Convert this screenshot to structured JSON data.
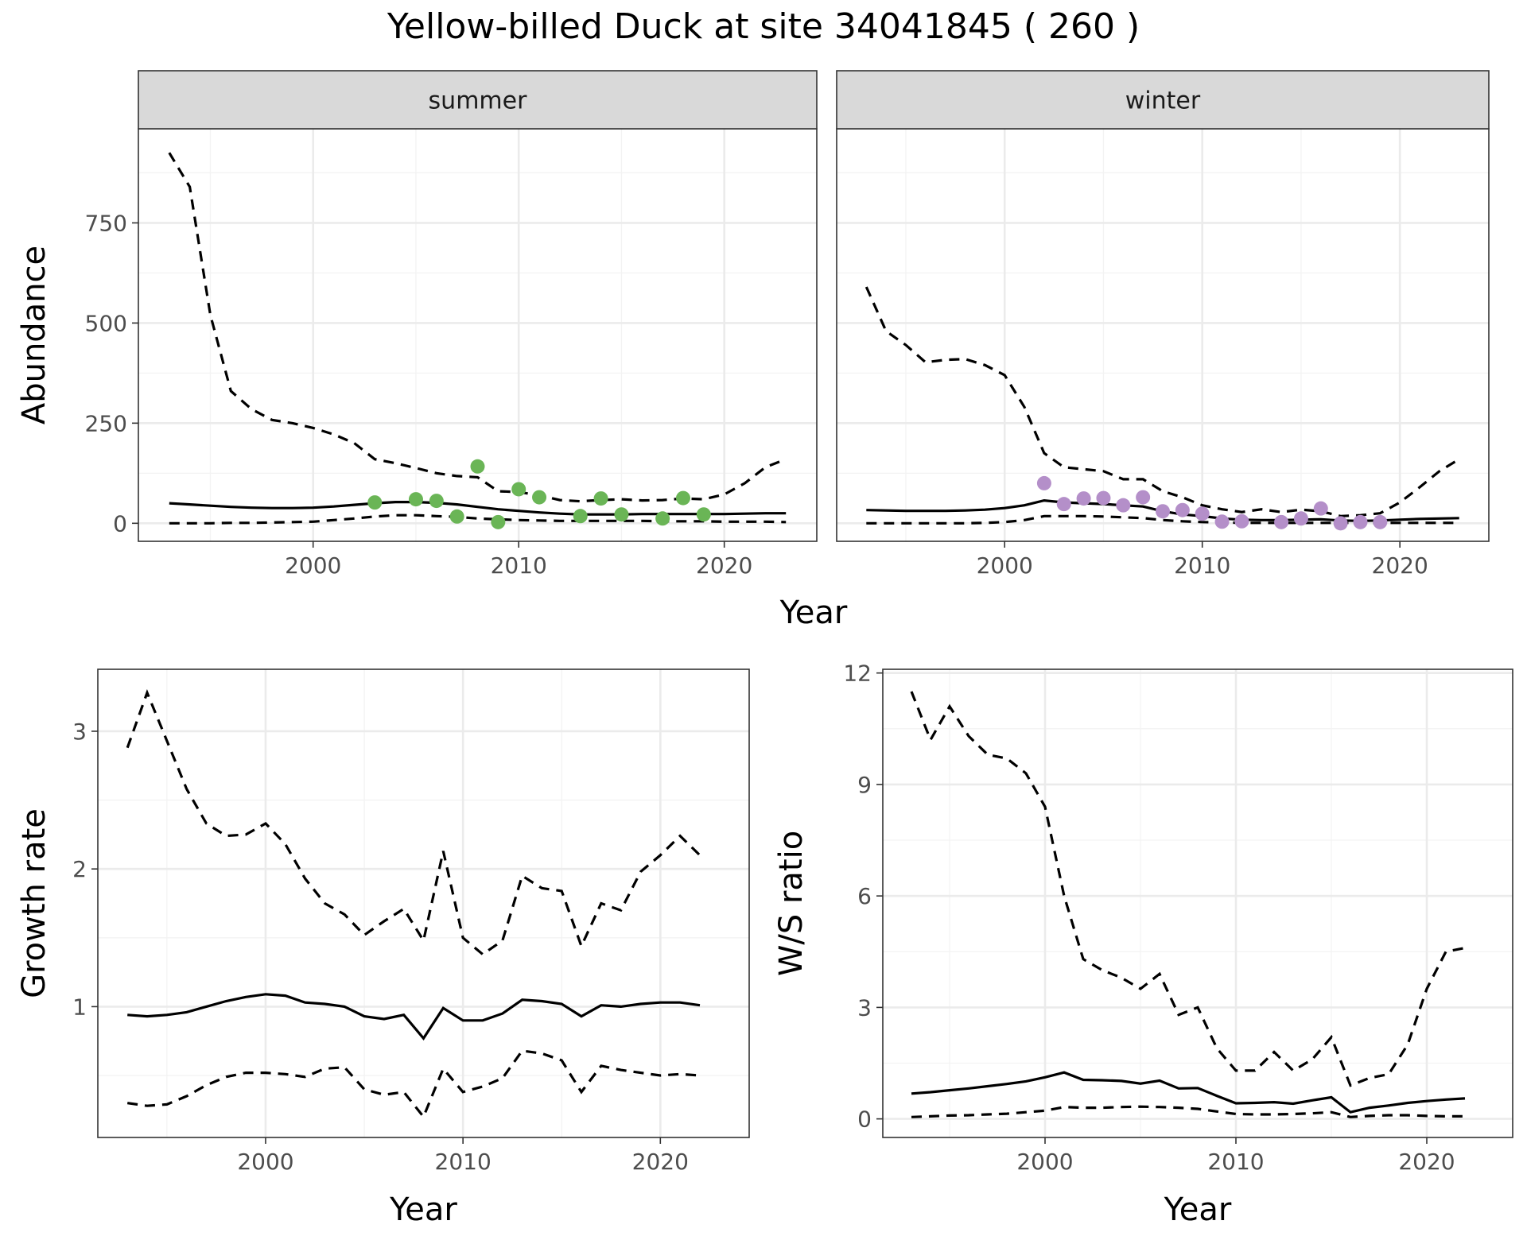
{
  "title": "Yellow-billed Duck at site 34041845 ( 260 )",
  "colors": {
    "summer_points": "#6ab556",
    "winter_points": "#b48fc9"
  },
  "chart_data": [
    {
      "id": "abundance",
      "type": "line",
      "title": "Yellow-billed Duck at site 34041845 ( 260 )",
      "xlabel": "Year",
      "ylabel": "Abundance",
      "xlim": [
        1991.5,
        2024.5
      ],
      "ylim": [
        -45,
        985
      ],
      "xticks": [
        2000,
        2010,
        2020
      ],
      "yticks": [
        0,
        250,
        500,
        750
      ],
      "facets": [
        {
          "strip": "summer",
          "years": [
            1993,
            1994,
            1995,
            1996,
            1997,
            1998,
            1999,
            2000,
            2001,
            2002,
            2003,
            2004,
            2005,
            2006,
            2007,
            2008,
            2009,
            2010,
            2011,
            2012,
            2013,
            2014,
            2015,
            2016,
            2017,
            2018,
            2019,
            2020,
            2021,
            2022,
            2023
          ],
          "mean": [
            50,
            47,
            44,
            41,
            39,
            38,
            38,
            39,
            42,
            46,
            50,
            53,
            53,
            51,
            47,
            41,
            35,
            31,
            27,
            24,
            22,
            22,
            22,
            23,
            23,
            23,
            23,
            23,
            24,
            25,
            25
          ],
          "upper": [
            925,
            840,
            520,
            330,
            285,
            258,
            250,
            238,
            222,
            200,
            160,
            150,
            138,
            125,
            118,
            115,
            80,
            78,
            70,
            58,
            55,
            58,
            60,
            57,
            58,
            62,
            60,
            72,
            100,
            140,
            160
          ],
          "lower": [
            0,
            0,
            0,
            1,
            1,
            2,
            3,
            4,
            8,
            12,
            17,
            20,
            20,
            18,
            16,
            12,
            10,
            8,
            7,
            6,
            6,
            6,
            6,
            6,
            5,
            5,
            5,
            4,
            4,
            4,
            3
          ],
          "observed": {
            "years": [
              2003,
              2005,
              2006,
              2007,
              2008,
              2009,
              2010,
              2011,
              2013,
              2014,
              2015,
              2017,
              2018,
              2019
            ],
            "values": [
              52,
              60,
              56,
              17,
              142,
              3,
              85,
              65,
              18,
              62,
              22,
              12,
              63,
              22
            ]
          }
        },
        {
          "strip": "winter",
          "years": [
            1993,
            1994,
            1995,
            1996,
            1997,
            1998,
            1999,
            2000,
            2001,
            2002,
            2003,
            2004,
            2005,
            2006,
            2007,
            2008,
            2009,
            2010,
            2011,
            2012,
            2013,
            2014,
            2015,
            2016,
            2017,
            2018,
            2019,
            2020,
            2021,
            2022,
            2023
          ],
          "mean": [
            33,
            32,
            31,
            31,
            31,
            32,
            34,
            38,
            45,
            57,
            52,
            50,
            48,
            45,
            42,
            30,
            22,
            18,
            12,
            9,
            8,
            8,
            9,
            10,
            7,
            6,
            7,
            9,
            11,
            12,
            13
          ],
          "upper": [
            590,
            480,
            445,
            402,
            408,
            410,
            395,
            370,
            290,
            175,
            140,
            135,
            130,
            110,
            110,
            80,
            65,
            45,
            35,
            28,
            35,
            28,
            34,
            30,
            18,
            20,
            25,
            52,
            90,
            130,
            160
          ],
          "lower": [
            0,
            0,
            0,
            0,
            0,
            0,
            1,
            3,
            8,
            18,
            18,
            18,
            17,
            15,
            13,
            8,
            5,
            3,
            2,
            1,
            1,
            1,
            1,
            1,
            1,
            1,
            1,
            1,
            1,
            1,
            1
          ],
          "observed": {
            "years": [
              2002,
              2003,
              2004,
              2005,
              2006,
              2007,
              2008,
              2009,
              2010,
              2011,
              2012,
              2014,
              2015,
              2016,
              2017,
              2018,
              2019
            ],
            "values": [
              100,
              48,
              62,
              63,
              45,
              65,
              30,
              33,
              24,
              4,
              5,
              3,
              12,
              37,
              0,
              3,
              3
            ]
          }
        }
      ]
    },
    {
      "id": "growth",
      "type": "line",
      "xlabel": "Year",
      "ylabel": "Growth rate",
      "xlim": [
        1991.5,
        2024.5
      ],
      "ylim": [
        0.05,
        3.45
      ],
      "xticks": [
        2000,
        2010,
        2020
      ],
      "yticks": [
        1,
        2,
        3
      ],
      "years": [
        1993,
        1994,
        1995,
        1996,
        1997,
        1998,
        1999,
        2000,
        2001,
        2002,
        2003,
        2004,
        2005,
        2006,
        2007,
        2008,
        2009,
        2010,
        2011,
        2012,
        2013,
        2014,
        2015,
        2016,
        2017,
        2018,
        2019,
        2020,
        2021,
        2022
      ],
      "mean": [
        0.94,
        0.93,
        0.94,
        0.96,
        1.0,
        1.04,
        1.07,
        1.09,
        1.08,
        1.03,
        1.02,
        1.0,
        0.93,
        0.91,
        0.94,
        0.77,
        0.99,
        0.9,
        0.9,
        0.95,
        1.05,
        1.04,
        1.02,
        0.93,
        1.01,
        1.0,
        1.02,
        1.03,
        1.03,
        1.01
      ],
      "upper": [
        2.88,
        3.28,
        2.93,
        2.58,
        2.33,
        2.24,
        2.25,
        2.33,
        2.18,
        1.93,
        1.75,
        1.67,
        1.52,
        1.62,
        1.71,
        1.48,
        2.13,
        1.5,
        1.38,
        1.48,
        1.95,
        1.86,
        1.84,
        1.44,
        1.75,
        1.7,
        1.98,
        2.1,
        2.24,
        2.1
      ],
      "lower": [
        0.3,
        0.28,
        0.29,
        0.35,
        0.43,
        0.49,
        0.52,
        0.52,
        0.51,
        0.49,
        0.55,
        0.56,
        0.4,
        0.36,
        0.38,
        0.2,
        0.55,
        0.38,
        0.42,
        0.48,
        0.68,
        0.66,
        0.61,
        0.38,
        0.57,
        0.54,
        0.52,
        0.5,
        0.51,
        0.5
      ]
    },
    {
      "id": "ratio",
      "type": "line",
      "xlabel": "Year",
      "ylabel": "W/S ratio",
      "xlim": [
        1991.5,
        2024.5
      ],
      "ylim": [
        -0.5,
        12.1
      ],
      "xticks": [
        2000,
        2010,
        2020
      ],
      "yticks": [
        0,
        3,
        6,
        9,
        12
      ],
      "years": [
        1993,
        1994,
        1995,
        1996,
        1997,
        1998,
        1999,
        2000,
        2001,
        2002,
        2003,
        2004,
        2005,
        2006,
        2007,
        2008,
        2009,
        2010,
        2011,
        2012,
        2013,
        2014,
        2015,
        2016,
        2017,
        2018,
        2019,
        2020,
        2021,
        2022
      ],
      "mean": [
        0.68,
        0.72,
        0.77,
        0.82,
        0.88,
        0.94,
        1.01,
        1.12,
        1.25,
        1.05,
        1.04,
        1.02,
        0.95,
        1.03,
        0.82,
        0.83,
        0.62,
        0.42,
        0.43,
        0.45,
        0.41,
        0.5,
        0.58,
        0.18,
        0.3,
        0.36,
        0.43,
        0.48,
        0.52,
        0.55
      ],
      "upper": [
        11.5,
        10.2,
        11.1,
        10.3,
        9.8,
        9.7,
        9.3,
        8.4,
        6.0,
        4.3,
        4.0,
        3.8,
        3.5,
        3.9,
        2.8,
        3.0,
        1.9,
        1.3,
        1.3,
        1.8,
        1.3,
        1.6,
        2.2,
        0.9,
        1.1,
        1.2,
        2.0,
        3.5,
        4.5,
        4.6
      ],
      "lower": [
        0.05,
        0.07,
        0.09,
        0.1,
        0.12,
        0.14,
        0.18,
        0.22,
        0.32,
        0.3,
        0.3,
        0.32,
        0.33,
        0.32,
        0.3,
        0.27,
        0.2,
        0.13,
        0.12,
        0.12,
        0.13,
        0.15,
        0.18,
        0.05,
        0.08,
        0.1,
        0.1,
        0.08,
        0.07,
        0.07
      ]
    }
  ]
}
